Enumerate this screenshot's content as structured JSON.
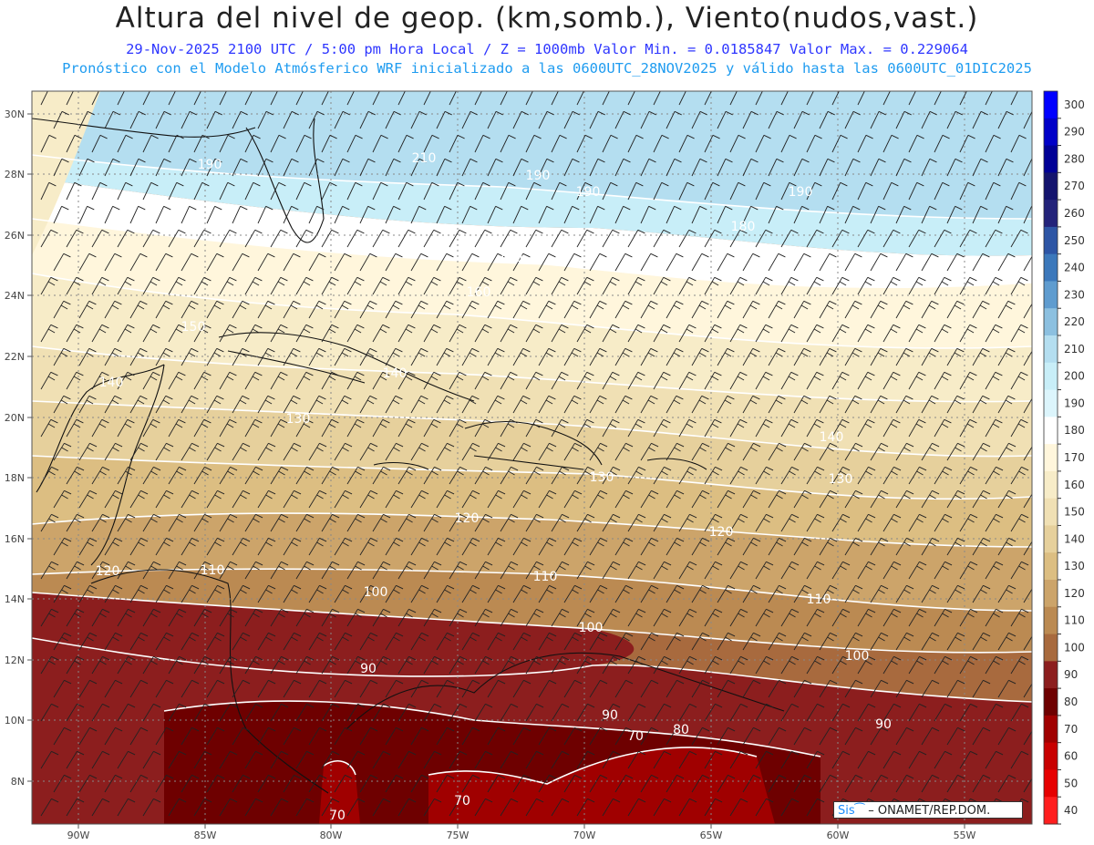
{
  "header": {
    "title": "Altura del nivel de geop. (km,somb.), Viento(nudos,vast.)",
    "subtitle_1": "29-Nov-2025  2100 UTC / 5:00 pm Hora Local / Z = 1000mb  Valor Min. = 0.0185847  Valor Max. = 0.229064",
    "subtitle_2": "Pronóstico con el Modelo Atmósferico WRF inicializado a las 0600UTC_28NOV2025 y válido hasta las  0600UTC_01DIC2025"
  },
  "map": {
    "lat_labels": [
      "30N",
      "28N",
      "26N",
      "24N",
      "22N",
      "20N",
      "18N",
      "16N",
      "14N",
      "12N",
      "10N",
      "8N"
    ],
    "lon_labels": [
      "90W",
      "85W",
      "80W",
      "75W",
      "70W",
      "65W",
      "60W",
      "55W"
    ],
    "contour_labels": [
      "190",
      "210",
      "190",
      "190",
      "190",
      "180",
      "170",
      "160",
      "150",
      "140",
      "140",
      "130",
      "140",
      "130",
      "130",
      "120",
      "120",
      "120",
      "110",
      "110",
      "110",
      "100",
      "100",
      "100",
      "90",
      "90",
      "90",
      "80",
      "70",
      "70",
      "70"
    ]
  },
  "colorbar": {
    "labels": [
      "300",
      "290",
      "280",
      "270",
      "260",
      "250",
      "240",
      "230",
      "220",
      "210",
      "200",
      "190",
      "180",
      "170",
      "160",
      "150",
      "140",
      "130",
      "120",
      "110",
      "100",
      "90",
      "80",
      "70",
      "60",
      "50",
      "40"
    ],
    "colors": [
      "#0000ff",
      "#0000c8",
      "#000096",
      "#14146e",
      "#23237a",
      "#2d55a5",
      "#3c78bb",
      "#5f9ccf",
      "#8cc0e0",
      "#b4def0",
      "#c8eef8",
      "#dcf5fc",
      "#ffffff",
      "#fff6dc",
      "#f7ecc8",
      "#f0e0b4",
      "#e6d09c",
      "#dcbe82",
      "#cca46a",
      "#bb8a52",
      "#a86a3e",
      "#8c1e1e",
      "#6e0000",
      "#a00000",
      "#c80000",
      "#e60000",
      "#ff1e1e"
    ]
  },
  "footer": {
    "credit_sis": "Sis",
    "credit_text": "– ONAMET/REP.DOM."
  }
}
